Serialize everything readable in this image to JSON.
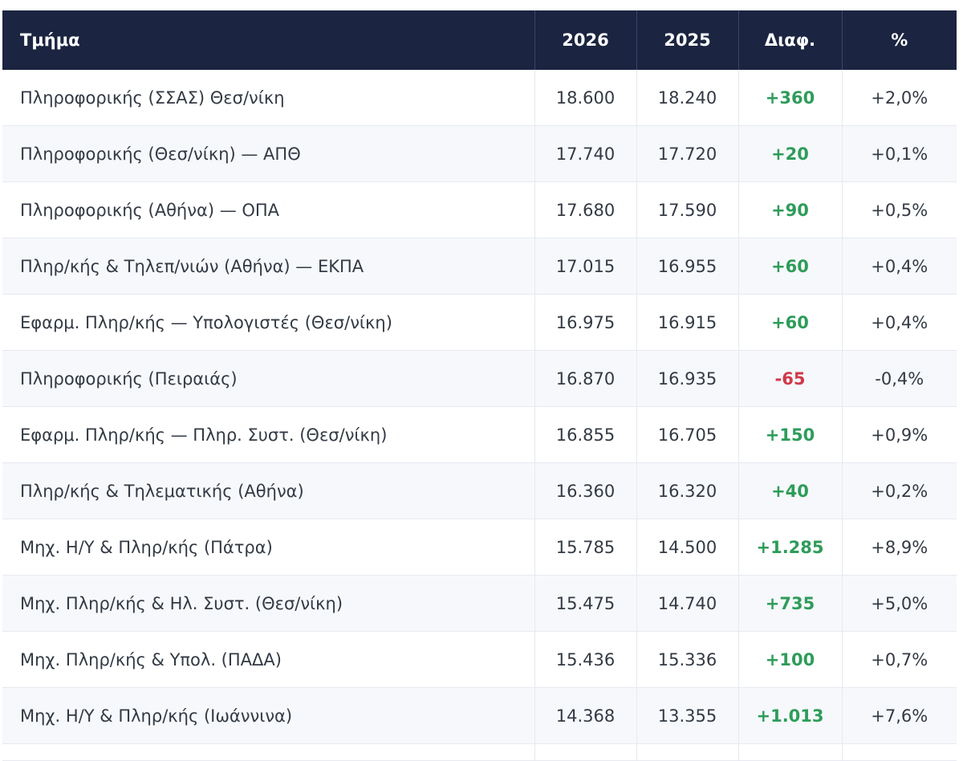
{
  "table": {
    "headers": {
      "department": "Τμήμα",
      "y2026": "2026",
      "y2025": "2025",
      "diff": "Διαφ.",
      "pct": "%"
    },
    "colors": {
      "header_bg": "#1b2440",
      "positive": "#2e9c5a",
      "negative": "#d0394a"
    },
    "rows": [
      {
        "department": "Πληροφορικής (ΣΣΑΣ) Θεσ/νίκη",
        "y2026": "18.600",
        "y2025": "18.240",
        "diff": "+360",
        "pct": "+2,0%"
      },
      {
        "department": "Πληροφορικής (Θεσ/νίκη) — ΑΠΘ",
        "y2026": "17.740",
        "y2025": "17.720",
        "diff": "+20",
        "pct": "+0,1%"
      },
      {
        "department": "Πληροφορικής (Αθήνα) — ΟΠΑ",
        "y2026": "17.680",
        "y2025": "17.590",
        "diff": "+90",
        "pct": "+0,5%"
      },
      {
        "department": "Πληρ/κής & Τηλεπ/νιών (Αθήνα) — ΕΚΠΑ",
        "y2026": "17.015",
        "y2025": "16.955",
        "diff": "+60",
        "pct": "+0,4%"
      },
      {
        "department": "Εφαρμ. Πληρ/κής — Υπολογιστές (Θεσ/νίκη)",
        "y2026": "16.975",
        "y2025": "16.915",
        "diff": "+60",
        "pct": "+0,4%"
      },
      {
        "department": "Πληροφορικής (Πειραιάς)",
        "y2026": "16.870",
        "y2025": "16.935",
        "diff": "-65",
        "pct": "-0,4%"
      },
      {
        "department": "Εφαρμ. Πληρ/κής — Πληρ. Συστ. (Θεσ/νίκη)",
        "y2026": "16.855",
        "y2025": "16.705",
        "diff": "+150",
        "pct": "+0,9%"
      },
      {
        "department": "Πληρ/κής & Τηλεματικής (Αθήνα)",
        "y2026": "16.360",
        "y2025": "16.320",
        "diff": "+40",
        "pct": "+0,2%"
      },
      {
        "department": "Μηχ. Η/Υ & Πληρ/κής (Πάτρα)",
        "y2026": "15.785",
        "y2025": "14.500",
        "diff": "+1.285",
        "pct": "+8,9%"
      },
      {
        "department": "Μηχ. Πληρ/κής & Ηλ. Συστ. (Θεσ/νίκη)",
        "y2026": "15.475",
        "y2025": "14.740",
        "diff": "+735",
        "pct": "+5,0%"
      },
      {
        "department": "Μηχ. Πληρ/κής & Υπολ. (ΠΑΔΑ)",
        "y2026": "15.436",
        "y2025": "15.336",
        "diff": "+100",
        "pct": "+0,7%"
      },
      {
        "department": "Μηχ. Η/Υ & Πληρ/κής (Ιωάννινα)",
        "y2026": "14.368",
        "y2025": "13.355",
        "diff": "+1.013",
        "pct": "+7,6%"
      }
    ]
  }
}
